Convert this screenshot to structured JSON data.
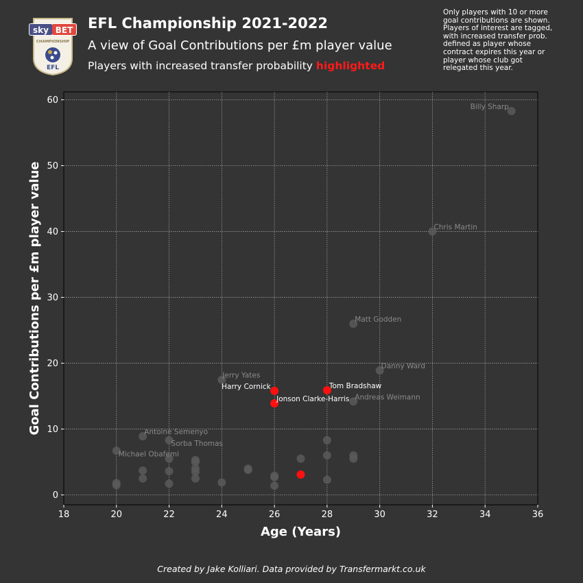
{
  "header": {
    "title": "EFL Championship 2021-2022",
    "subtitle": "A view of Goal Contributions per £m player value",
    "subtitle2_prefix": "Players with increased transfer probability ",
    "subtitle2_highlight": "highlighted"
  },
  "note": "Only players with 10 or more goal contributions are shown. Players of interest are tagged, with increased transfer prob. defined as player whose contract expires this year or player whose club got relegated this year.",
  "footer": "Created by Jake Kolliari. Data provided by Transfermarkt.co.uk",
  "logo": {
    "sky": "sky",
    "bet": "BET",
    "league": "CHAMPIONSHIP",
    "efl": "EFL"
  },
  "colors": {
    "background": "#333433",
    "point_default": "#5a5a5a",
    "point_highlight": "#ff1010",
    "label_default": "#8a8a8a",
    "label_highlight": "#ffffff",
    "grid": "#9a9a9a"
  },
  "chart_data": {
    "type": "scatter",
    "xlabel": "Age (Years)",
    "ylabel": "Goal Contributions per £m player value",
    "xlim": [
      18,
      36
    ],
    "ylim": [
      -1.5,
      61.2
    ],
    "xticks": [
      18,
      20,
      22,
      24,
      26,
      28,
      30,
      32,
      34,
      36
    ],
    "yticks": [
      0,
      10,
      20,
      30,
      40,
      50,
      60
    ],
    "grid": true,
    "points": [
      {
        "x": 35,
        "y": 58.3,
        "label": "Billy Sharp",
        "highlight": false
      },
      {
        "x": 32,
        "y": 40.0,
        "label": "Chris Martin",
        "highlight": false
      },
      {
        "x": 29,
        "y": 26.0,
        "label": "Matt Godden",
        "highlight": false
      },
      {
        "x": 30,
        "y": 18.9,
        "label": "Danny Ward",
        "highlight": false
      },
      {
        "x": 24,
        "y": 17.5,
        "label": "Jerry Yates",
        "highlight": false
      },
      {
        "x": 26,
        "y": 15.8,
        "label": "Harry Cornick",
        "highlight": true
      },
      {
        "x": 28,
        "y": 15.9,
        "label": "Tom Bradshaw",
        "highlight": true
      },
      {
        "x": 26,
        "y": 13.9,
        "label": "Jonson Clarke-Harris",
        "highlight": true
      },
      {
        "x": 29,
        "y": 14.2,
        "label": "Andreas Weimann",
        "highlight": false
      },
      {
        "x": 21,
        "y": 8.9,
        "label": "Antoine Semenyo",
        "highlight": false
      },
      {
        "x": 22,
        "y": 8.3,
        "label": "Sorba Thomas",
        "highlight": false
      },
      {
        "x": 20,
        "y": 6.7,
        "label": "Michael Obafemi",
        "highlight": false
      },
      {
        "x": 27,
        "y": 3.1,
        "label": "",
        "highlight": true
      },
      {
        "x": 22,
        "y": 5.5,
        "label": "",
        "highlight": false
      },
      {
        "x": 23,
        "y": 5.3,
        "label": "",
        "highlight": false
      },
      {
        "x": 23,
        "y": 5.0,
        "label": "",
        "highlight": false
      },
      {
        "x": 23,
        "y": 4.0,
        "label": "",
        "highlight": false
      },
      {
        "x": 23,
        "y": 3.5,
        "label": "",
        "highlight": false
      },
      {
        "x": 23,
        "y": 2.5,
        "label": "",
        "highlight": false
      },
      {
        "x": 21,
        "y": 3.7,
        "label": "",
        "highlight": false
      },
      {
        "x": 21,
        "y": 2.5,
        "label": "",
        "highlight": false
      },
      {
        "x": 22,
        "y": 3.6,
        "label": "",
        "highlight": false
      },
      {
        "x": 22,
        "y": 1.7,
        "label": "",
        "highlight": false
      },
      {
        "x": 20,
        "y": 1.8,
        "label": "",
        "highlight": false
      },
      {
        "x": 20,
        "y": 1.5,
        "label": "",
        "highlight": false
      },
      {
        "x": 24,
        "y": 1.9,
        "label": "",
        "highlight": false
      },
      {
        "x": 25,
        "y": 4.0,
        "label": "",
        "highlight": false
      },
      {
        "x": 25,
        "y": 3.8,
        "label": "",
        "highlight": false
      },
      {
        "x": 26,
        "y": 2.9,
        "label": "",
        "highlight": false
      },
      {
        "x": 26,
        "y": 2.7,
        "label": "",
        "highlight": false
      },
      {
        "x": 26,
        "y": 1.4,
        "label": "",
        "highlight": false
      },
      {
        "x": 27,
        "y": 5.5,
        "label": "",
        "highlight": false
      },
      {
        "x": 28,
        "y": 8.3,
        "label": "",
        "highlight": false
      },
      {
        "x": 28,
        "y": 6.0,
        "label": "",
        "highlight": false
      },
      {
        "x": 28,
        "y": 2.3,
        "label": "",
        "highlight": false
      },
      {
        "x": 29,
        "y": 6.0,
        "label": "",
        "highlight": false
      },
      {
        "x": 29,
        "y": 5.5,
        "label": "",
        "highlight": false
      }
    ]
  }
}
